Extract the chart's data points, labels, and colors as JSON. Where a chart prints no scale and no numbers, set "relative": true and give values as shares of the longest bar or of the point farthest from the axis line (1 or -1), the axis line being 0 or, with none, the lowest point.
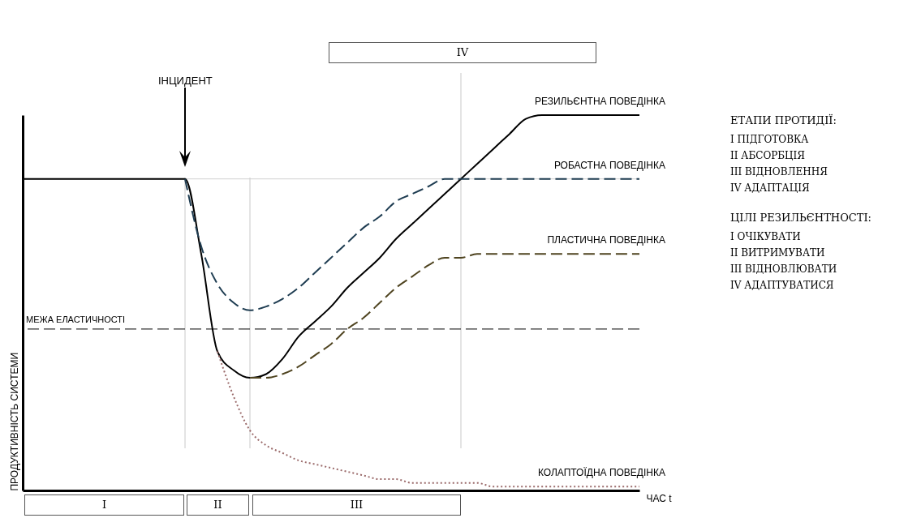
{
  "chart_data": {
    "type": "line",
    "relative": true,
    "xlabel": "ЧАС t",
    "ylabel": "ПРОДУКТИВНІСТЬ СИСТЕМИ",
    "grid": "x",
    "marker": "none",
    "categories": [
      null,
      null,
      null,
      null,
      null,
      null,
      null,
      null,
      null,
      null,
      null,
      null,
      null,
      null,
      null,
      null,
      null,
      null,
      null,
      null,
      null,
      null,
      null,
      null,
      null,
      null,
      null,
      null,
      null,
      null,
      null,
      null,
      null,
      null,
      null,
      null,
      null,
      null,
      null
    ],
    "series": [
      {
        "name": "РЕЗИЛЬЄНТНА ПОВЕДІНКА",
        "color": "#000000",
        "line_style": "solid",
        "values": [
          0.83,
          0.83,
          0.83,
          0.83,
          0.83,
          0.83,
          0.83,
          0.83,
          0.83,
          0.83,
          0.83,
          0.63,
          0.37,
          0.32,
          0.3,
          0.31,
          0.35,
          0.41,
          0.45,
          0.49,
          0.54,
          0.58,
          0.62,
          0.67,
          0.71,
          0.75,
          0.79,
          0.83,
          0.87,
          0.91,
          0.95,
          0.99,
          1.0,
          1.0,
          1.0,
          1.0,
          1.0,
          1.0,
          1.0
        ]
      },
      {
        "name": "РОБАСТНА ПОВЕДІНКА",
        "color": "#1f3d52",
        "line_style": "dashed",
        "values": [
          null,
          null,
          null,
          null,
          null,
          null,
          null,
          null,
          null,
          null,
          0.83,
          0.65,
          0.55,
          0.5,
          0.48,
          0.49,
          0.51,
          0.54,
          0.58,
          0.62,
          0.66,
          0.7,
          0.73,
          0.77,
          0.79,
          0.81,
          0.83,
          0.83,
          0.83,
          0.83,
          0.83,
          0.83,
          0.83,
          0.83,
          0.83,
          0.83,
          0.83,
          0.83,
          0.83
        ]
      },
      {
        "name": "ПЛАСТИЧНА ПОВЕДІНКА",
        "color": "#4f4420",
        "line_style": "dashed",
        "values": [
          null,
          null,
          null,
          null,
          null,
          null,
          null,
          null,
          null,
          null,
          null,
          null,
          null,
          null,
          0.3,
          0.3,
          0.31,
          0.33,
          0.36,
          0.39,
          0.43,
          0.46,
          0.5,
          0.54,
          0.57,
          0.6,
          0.62,
          0.62,
          0.63,
          0.63,
          0.63,
          0.63,
          0.63,
          0.63,
          0.63,
          0.63,
          0.63,
          0.63,
          0.63
        ]
      },
      {
        "name": "КОЛАПТОЇДНА ПОВЕДІНКА",
        "color": "#9b6b6b",
        "line_style": "dotted",
        "values": [
          null,
          null,
          null,
          null,
          null,
          null,
          null,
          null,
          null,
          null,
          null,
          null,
          0.37,
          0.25,
          0.16,
          0.12,
          0.1,
          0.08,
          0.07,
          0.06,
          0.05,
          0.04,
          0.03,
          0.03,
          0.02,
          0.02,
          0.02,
          0.02,
          0.02,
          0.01,
          0.01,
          0.01,
          0.01,
          0.01,
          0.01,
          0.01,
          0.01,
          0.01,
          0.01
        ]
      }
    ],
    "ref_lines": [
      {
        "axis": "y",
        "value": 0.43,
        "label": "МЕЖА ЕЛАСТИЧНОСТІ",
        "color": "#000000",
        "line_style": "dashed"
      },
      {
        "axis": "y",
        "value": 0.83,
        "color": "#d0d0d0",
        "line_style": "solid"
      }
    ],
    "annotations": [
      "ІНЦИДЕНТ",
      "I",
      "II",
      "III",
      "IV",
      "ЕТАПИ ПРОТИДІЇ:",
      "I ПІДГОТОВКА",
      "II АБСОРБЦІЯ",
      "III ВІДНОВЛЕННЯ",
      "IV АДАПТАЦІЯ",
      "ЦІЛІ РЕЗИЛЬЄНТНОСТІ:",
      "I ОЧІКУВАТИ",
      "II ВИТРИМУВАТИ",
      "III ВІДНОВЛЮВАТИ",
      "IV АДАПТУВАТИСЯ"
    ]
  }
}
